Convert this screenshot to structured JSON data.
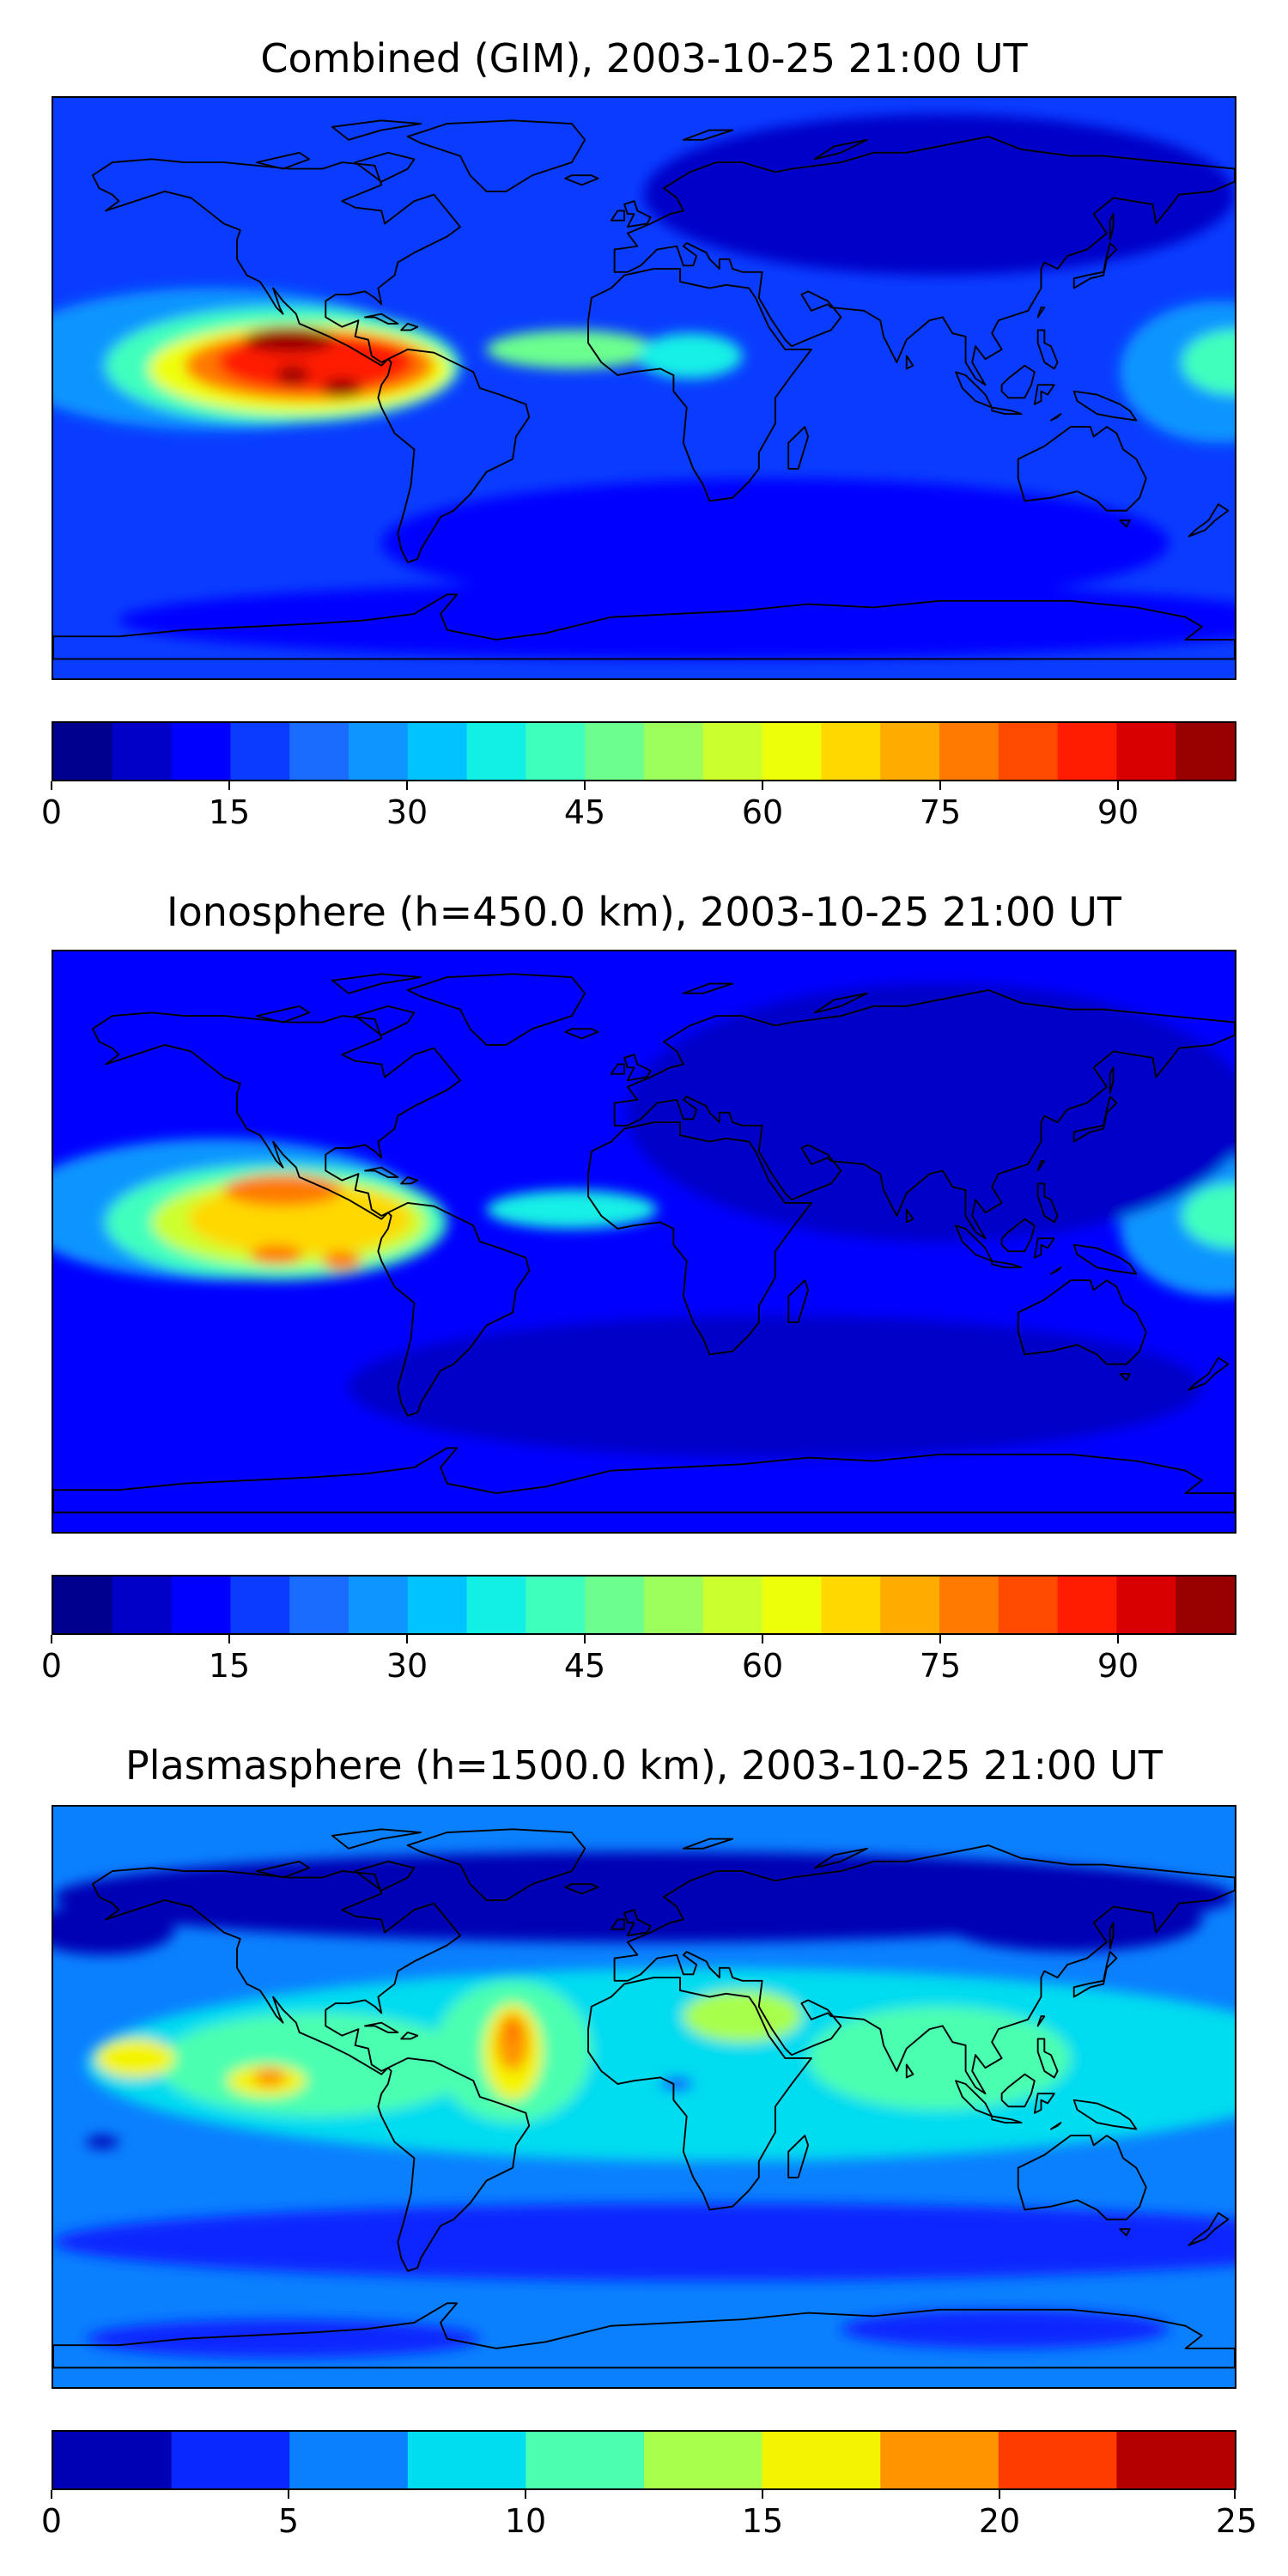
{
  "chart_data": [
    {
      "type": "heatmap",
      "title": "Combined (GIM), 2003-10-25 21:00 UT",
      "colorbar": {
        "min": 0,
        "max": 100,
        "step": 5,
        "ticks": [
          "0",
          "15",
          "30",
          "45",
          "60",
          "75",
          "90"
        ],
        "tick_values": [
          0,
          15,
          30,
          45,
          60,
          75,
          90
        ],
        "colors": [
          "#00008f",
          "#0000c8",
          "#0000ff",
          "#0a3cff",
          "#1a6cff",
          "#0e95ff",
          "#00c3ff",
          "#12f0e6",
          "#3fffbd",
          "#6cff8e",
          "#9cff5c",
          "#ccff2e",
          "#eeff0a",
          "#ffd800",
          "#ffab00",
          "#ff7a00",
          "#ff4a00",
          "#ff1c00",
          "#d80000",
          "#980000"
        ]
      },
      "background_level": 3,
      "features": [
        {
          "lon": -132,
          "lat": 9,
          "rx": 64,
          "ry": 22,
          "level": 5
        },
        {
          "lon": -110,
          "lat": 7,
          "rx": 54,
          "ry": 18,
          "level": 8
        },
        {
          "lon": -105,
          "lat": 6,
          "rx": 46,
          "ry": 14,
          "level": 12
        },
        {
          "lon": -102,
          "lat": 7,
          "rx": 38,
          "ry": 11,
          "level": 15
        },
        {
          "lon": -100,
          "lat": 8,
          "rx": 30,
          "ry": 9,
          "level": 17
        },
        {
          "lon": -108,
          "lat": 15,
          "rx": 14,
          "ry": 4,
          "level": 19
        },
        {
          "lon": -107,
          "lat": 4,
          "rx": 5,
          "ry": 3,
          "level": 19
        },
        {
          "lon": -92,
          "lat": 0,
          "rx": 6,
          "ry": 3,
          "level": 19
        },
        {
          "lon": -22,
          "lat": 12,
          "rx": 26,
          "ry": 6,
          "level": 9
        },
        {
          "lon": 14,
          "lat": 10,
          "rx": 16,
          "ry": 7,
          "level": 7
        },
        {
          "lon": 175,
          "lat": 5,
          "rx": 30,
          "ry": 22,
          "level": 5
        },
        {
          "lon": 180,
          "lat": 8,
          "rx": 16,
          "ry": 10,
          "level": 8
        },
        {
          "lon": 90,
          "lat": 60,
          "rx": 90,
          "ry": 25,
          "level": 1
        },
        {
          "lon": 40,
          "lat": -48,
          "rx": 120,
          "ry": 20,
          "level": 2
        },
        {
          "lon": 20,
          "lat": -72,
          "rx": 180,
          "ry": 12,
          "level": 2
        }
      ]
    },
    {
      "type": "heatmap",
      "title": "Ionosphere  (h=450.0 km), 2003-10-25 21:00 UT",
      "colorbar": {
        "min": 0,
        "max": 100,
        "step": 5,
        "ticks": [
          "0",
          "15",
          "30",
          "45",
          "60",
          "75",
          "90"
        ],
        "tick_values": [
          0,
          15,
          30,
          45,
          60,
          75,
          90
        ],
        "colors": [
          "#00008f",
          "#0000c8",
          "#0000ff",
          "#0a3cff",
          "#1a6cff",
          "#0e95ff",
          "#00c3ff",
          "#12f0e6",
          "#3fffbd",
          "#6cff8e",
          "#9cff5c",
          "#ccff2e",
          "#eeff0a",
          "#ffd800",
          "#ffab00",
          "#ff7a00",
          "#ff4a00",
          "#ff1c00",
          "#d80000",
          "#980000"
        ]
      },
      "background_level": 2,
      "features": [
        {
          "lon": -130,
          "lat": 10,
          "rx": 62,
          "ry": 22,
          "level": 5
        },
        {
          "lon": -112,
          "lat": 6,
          "rx": 52,
          "ry": 18,
          "level": 8
        },
        {
          "lon": -108,
          "lat": 6,
          "rx": 42,
          "ry": 14,
          "level": 11
        },
        {
          "lon": -105,
          "lat": 7,
          "rx": 34,
          "ry": 11,
          "level": 13
        },
        {
          "lon": -110,
          "lat": 16,
          "rx": 18,
          "ry": 5,
          "level": 15
        },
        {
          "lon": -112,
          "lat": -4,
          "rx": 8,
          "ry": 3,
          "level": 15
        },
        {
          "lon": -92,
          "lat": -6,
          "rx": 6,
          "ry": 3,
          "level": 15
        },
        {
          "lon": -22,
          "lat": 10,
          "rx": 26,
          "ry": 6,
          "level": 7
        },
        {
          "lon": 175,
          "lat": 5,
          "rx": 30,
          "ry": 22,
          "level": 5
        },
        {
          "lon": 180,
          "lat": 8,
          "rx": 16,
          "ry": 10,
          "level": 8
        },
        {
          "lon": 90,
          "lat": 40,
          "rx": 95,
          "ry": 40,
          "level": 1
        },
        {
          "lon": 40,
          "lat": -45,
          "rx": 130,
          "ry": 22,
          "level": 1
        }
      ]
    },
    {
      "type": "heatmap",
      "title": "Plasmasphere (h=1500.0 km), 2003-10-25 21:00 UT",
      "colorbar": {
        "min": 0,
        "max": 25,
        "step": 2.5,
        "ticks": [
          "0",
          "5",
          "10",
          "15",
          "20",
          "25"
        ],
        "tick_values": [
          0,
          5,
          10,
          15,
          20,
          25
        ],
        "colors": [
          "#0000b4",
          "#0828ff",
          "#0a80ff",
          "#00dcf0",
          "#4cffb0",
          "#a8ff4c",
          "#f4f400",
          "#ff9400",
          "#ff3c00",
          "#b40000"
        ]
      },
      "background_level": 2,
      "features": [
        {
          "lon": 0,
          "lat": 62,
          "rx": 180,
          "ry": 14,
          "level": 0
        },
        {
          "lon": -165,
          "lat": 52,
          "rx": 22,
          "ry": 8,
          "level": 0
        },
        {
          "lon": 130,
          "lat": 55,
          "rx": 40,
          "ry": 10,
          "level": 0
        },
        {
          "lon": 20,
          "lat": 10,
          "rx": 190,
          "ry": 30,
          "level": 3
        },
        {
          "lon": -100,
          "lat": 10,
          "rx": 48,
          "ry": 16,
          "level": 4
        },
        {
          "lon": -40,
          "lat": 14,
          "rx": 24,
          "ry": 22,
          "level": 4
        },
        {
          "lon": 90,
          "lat": 12,
          "rx": 40,
          "ry": 16,
          "level": 4
        },
        {
          "lon": 30,
          "lat": 25,
          "rx": 18,
          "ry": 8,
          "level": 5
        },
        {
          "lon": -155,
          "lat": 12,
          "rx": 12,
          "ry": 6,
          "level": 6
        },
        {
          "lon": -115,
          "lat": 5,
          "rx": 12,
          "ry": 5,
          "level": 6
        },
        {
          "lon": -40,
          "lat": 14,
          "rx": 9,
          "ry": 15,
          "level": 6
        },
        {
          "lon": -40,
          "lat": 17,
          "rx": 5,
          "ry": 9,
          "level": 7
        },
        {
          "lon": -40,
          "lat": 20,
          "rx": 1,
          "ry": 3,
          "level": 8
        },
        {
          "lon": -114,
          "lat": 6,
          "rx": 5,
          "ry": 3,
          "level": 7
        },
        {
          "lon": 10,
          "lat": 4,
          "rx": 5,
          "ry": 2,
          "level": 1
        },
        {
          "lon": -165,
          "lat": -14,
          "rx": 5,
          "ry": 2,
          "level": 0
        },
        {
          "lon": 20,
          "lat": -45,
          "rx": 200,
          "ry": 12,
          "level": 1
        },
        {
          "lon": 110,
          "lat": -72,
          "rx": 50,
          "ry": 6,
          "level": 1
        },
        {
          "lon": -110,
          "lat": -75,
          "rx": 60,
          "ry": 6,
          "level": 1
        }
      ]
    }
  ]
}
